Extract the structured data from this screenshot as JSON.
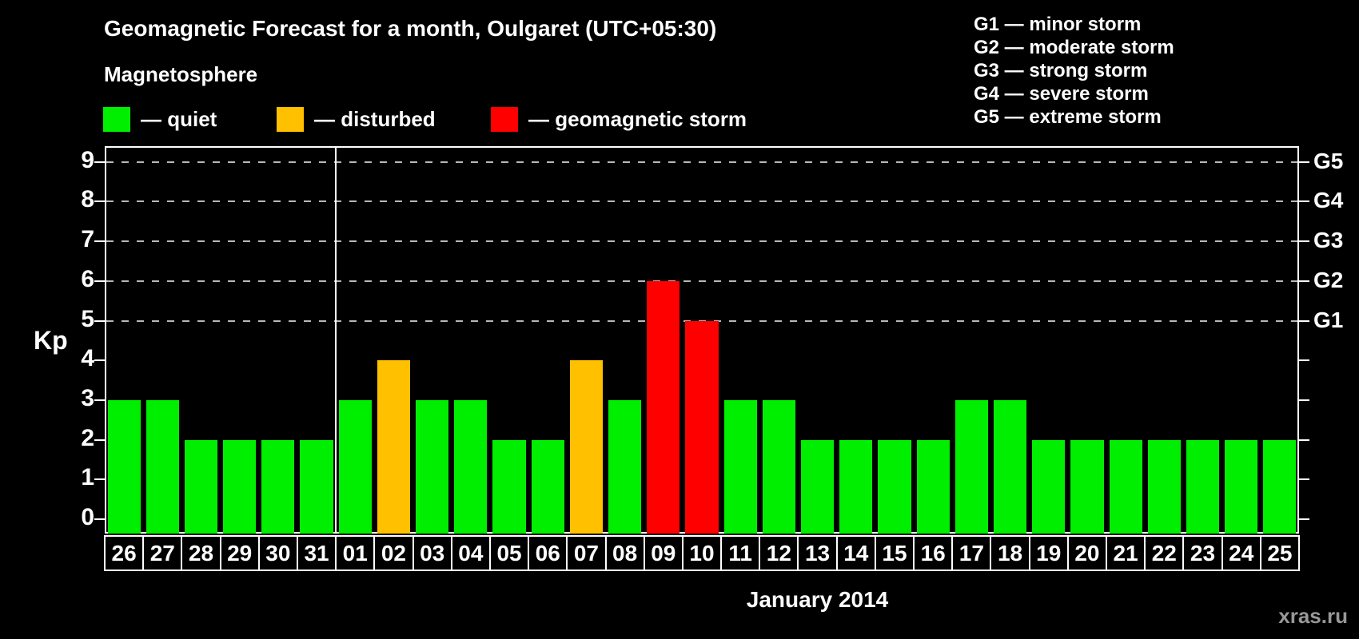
{
  "title": "Geomagnetic Forecast for a month, Oulgaret (UTC+05:30)",
  "subtitle": "Magnetosphere",
  "legend": {
    "items": [
      {
        "key": "quiet",
        "label": "— quiet",
        "color": "#00ee00"
      },
      {
        "key": "disturbed",
        "label": "— disturbed",
        "color": "#ffc000"
      },
      {
        "key": "storm",
        "label": "— geomagnetic storm",
        "color": "#ff0000"
      }
    ]
  },
  "g_scale_legend": [
    "G1 — minor storm",
    "G2 — moderate storm",
    "G3 — strong storm",
    "G4 — severe storm",
    "G5 — extreme storm"
  ],
  "axes": {
    "y_label": "Kp",
    "y_ticks": [
      0,
      1,
      2,
      3,
      4,
      5,
      6,
      7,
      8,
      9
    ],
    "right_g_labels": [
      {
        "kp": 5,
        "label": "G1"
      },
      {
        "kp": 6,
        "label": "G2"
      },
      {
        "kp": 7,
        "label": "G3"
      },
      {
        "kp": 8,
        "label": "G4"
      },
      {
        "kp": 9,
        "label": "G5"
      }
    ]
  },
  "month_label": "January 2014",
  "watermark": "xras.ru",
  "chart_data": {
    "type": "bar",
    "title": "Geomagnetic Forecast for a month, Oulgaret (UTC+05:30)",
    "xlabel": "January 2014",
    "ylabel": "Kp",
    "ylim": [
      0,
      9
    ],
    "grid": "dashed horizontal lines at Kp 5-9 (G1-G5)",
    "gridlines_at": [
      5,
      6,
      7,
      8,
      9
    ],
    "legend_position": "top",
    "separator_after_index": 5,
    "categories": [
      "26",
      "27",
      "28",
      "29",
      "30",
      "31",
      "01",
      "02",
      "03",
      "04",
      "05",
      "06",
      "07",
      "08",
      "09",
      "10",
      "11",
      "12",
      "13",
      "14",
      "15",
      "16",
      "17",
      "18",
      "19",
      "20",
      "21",
      "22",
      "23",
      "24",
      "25"
    ],
    "values": [
      3,
      3,
      2,
      2,
      2,
      2,
      3,
      4,
      3,
      3,
      2,
      2,
      4,
      3,
      6,
      5,
      3,
      3,
      2,
      2,
      2,
      2,
      3,
      3,
      2,
      2,
      2,
      2,
      2,
      2,
      2
    ],
    "statuses": [
      "quiet",
      "quiet",
      "quiet",
      "quiet",
      "quiet",
      "quiet",
      "quiet",
      "disturbed",
      "quiet",
      "quiet",
      "quiet",
      "quiet",
      "disturbed",
      "quiet",
      "storm",
      "storm",
      "quiet",
      "quiet",
      "quiet",
      "quiet",
      "quiet",
      "quiet",
      "quiet",
      "quiet",
      "quiet",
      "quiet",
      "quiet",
      "quiet",
      "quiet",
      "quiet",
      "quiet"
    ]
  }
}
